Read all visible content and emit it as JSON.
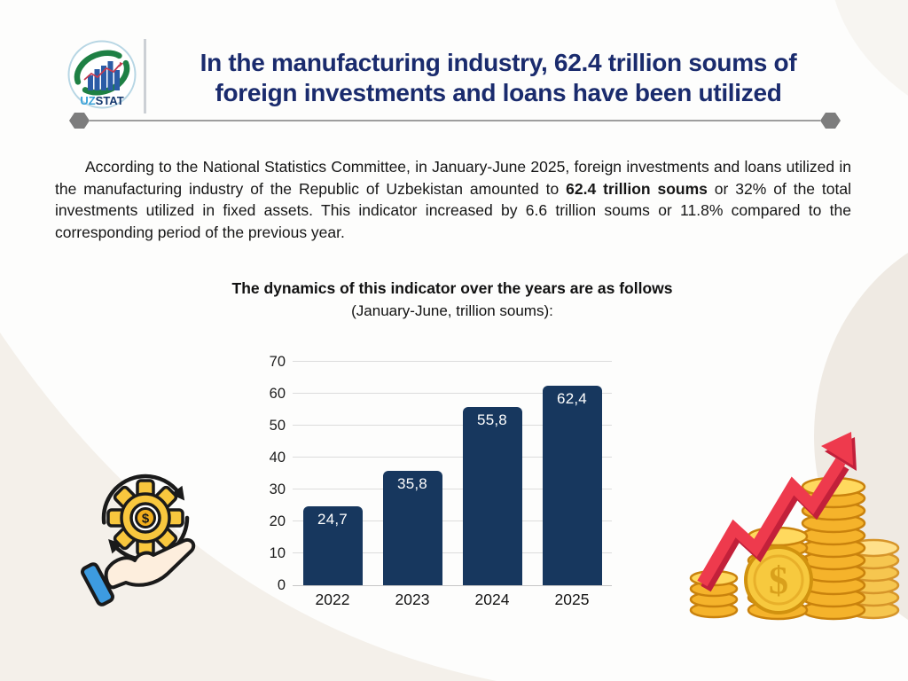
{
  "colors": {
    "title_navy": "#1a2b6d",
    "bar_navy": "#17375e",
    "background": "#fdfdfc",
    "beige_shape": "#f4f0ea",
    "beige_circle": "#efeae3",
    "divider_gray": "#9e9e9e",
    "logo_green": "#1e8044",
    "logo_blue_bars": "#2b5ca6",
    "gold": "#f5b32b",
    "arrow_red": "#ee3a4d"
  },
  "header": {
    "logo": {
      "brand_uz": "UZ",
      "brand_stat": "STAT"
    },
    "title_line1": "In the manufacturing industry, 62.4 trillion soums of",
    "title_line2": "foreign investments and loans have been utilized"
  },
  "article": {
    "intro_before_bold": "According to the National Statistics Committee, in January-June 2025, foreign investments and loans utilized in the manufacturing industry of the Republic of Uzbekistan amounted to ",
    "intro_bold": "62.4 trillion soums",
    "intro_after_bold": " or 32% of the total investments utilized in fixed assets. This indicator increased by 6.6 trillion soums or 11.8% compared to the corresponding period of the previous year."
  },
  "chart_data": {
    "type": "bar",
    "title": "The dynamics of this indicator over the years are as follows",
    "subtitle": "(January-June, trillion soums):",
    "categories": [
      "2022",
      "2023",
      "2024",
      "2025"
    ],
    "values": [
      24.7,
      35.8,
      55.8,
      62.4
    ],
    "value_labels": [
      "24,7",
      "35,8",
      "55,8",
      "62,4"
    ],
    "ylabel": "",
    "xlabel": "",
    "ylim": [
      0,
      70
    ],
    "yticks": [
      0,
      10,
      20,
      30,
      40,
      50,
      60,
      70
    ],
    "grid": true,
    "legend": "none",
    "bar_color": "#17375e",
    "label_color": "#ffffff"
  },
  "icons": {
    "gear_dollar_glyph": "$",
    "coin_dollar_glyph": "$"
  }
}
